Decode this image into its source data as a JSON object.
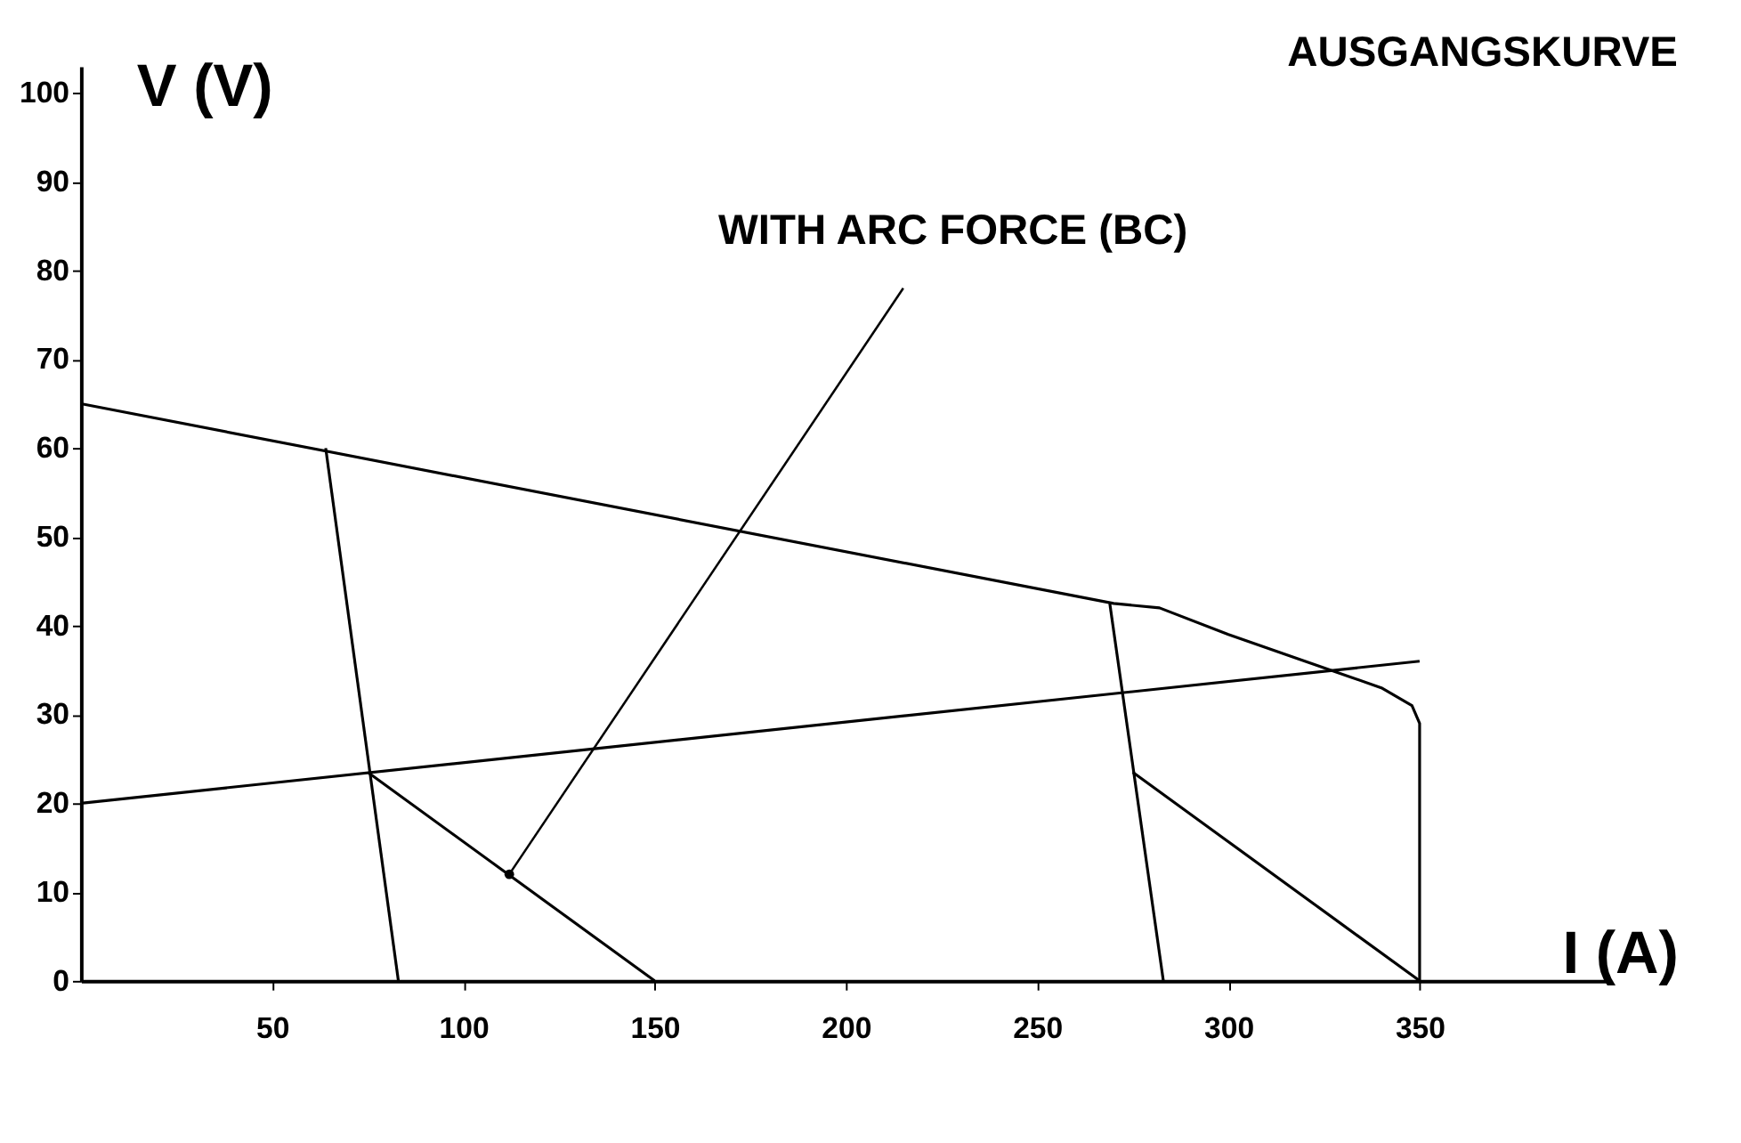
{
  "chart_data": {
    "type": "line",
    "title": "AUSGANGSKURVE",
    "xlabel": "I (A)",
    "ylabel": "V (V)",
    "xlim": [
      0,
      400
    ],
    "ylim": [
      0,
      103
    ],
    "xticks": [
      50,
      100,
      150,
      200,
      250,
      300,
      350
    ],
    "yticks": [
      0,
      10,
      20,
      30,
      40,
      50,
      60,
      70,
      80,
      90,
      100
    ],
    "grid": false,
    "legend": false,
    "marker": "none",
    "line_style": "solid",
    "series": [
      {
        "color": "#000000",
        "x": [
          0,
          270,
          282,
          300,
          320,
          340,
          348,
          350,
          350
        ],
        "values": [
          65,
          42.5,
          42,
          39,
          36,
          33,
          31,
          29,
          0
        ]
      },
      {
        "color": "#000000",
        "x": [
          0,
          350
        ],
        "values": [
          20,
          36
        ]
      },
      {
        "color": "#000000",
        "x": [
          64,
          83
        ],
        "values": [
          60,
          0
        ]
      },
      {
        "color": "#000000",
        "x": [
          75,
          150
        ],
        "values": [
          23.5,
          0
        ]
      },
      {
        "color": "#000000",
        "x": [
          269,
          283
        ],
        "values": [
          42.5,
          0
        ]
      },
      {
        "color": "#000000",
        "x": [
          275,
          350
        ],
        "values": [
          23.5,
          0
        ]
      }
    ],
    "annotations": [
      {
        "text": "WITH ARC FORCE (BC)",
        "x": 112,
        "y": 12
      }
    ]
  }
}
